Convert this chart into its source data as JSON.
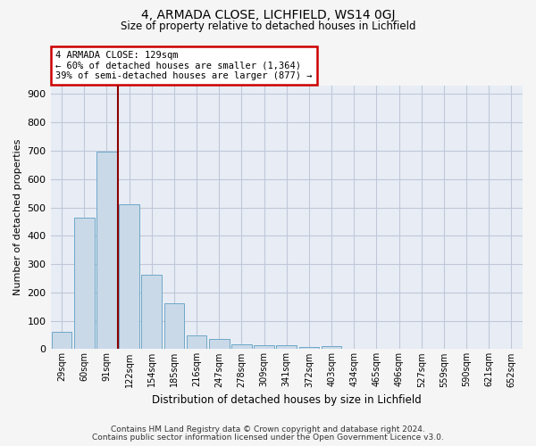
{
  "title1": "4, ARMADA CLOSE, LICHFIELD, WS14 0GJ",
  "title2": "Size of property relative to detached houses in Lichfield",
  "xlabel": "Distribution of detached houses by size in Lichfield",
  "ylabel": "Number of detached properties",
  "bar_labels": [
    "29sqm",
    "60sqm",
    "91sqm",
    "122sqm",
    "154sqm",
    "185sqm",
    "216sqm",
    "247sqm",
    "278sqm",
    "309sqm",
    "341sqm",
    "372sqm",
    "403sqm",
    "434sqm",
    "465sqm",
    "496sqm",
    "527sqm",
    "559sqm",
    "590sqm",
    "621sqm",
    "652sqm"
  ],
  "bar_heights": [
    60,
    465,
    697,
    510,
    263,
    163,
    48,
    35,
    18,
    14,
    13,
    6,
    10,
    0,
    0,
    0,
    0,
    0,
    0,
    0,
    0
  ],
  "bar_color": "#c9d9e8",
  "bar_edge_color": "#6fa8c8",
  "annotation_text": "4 ARMADA CLOSE: 129sqm\n← 60% of detached houses are smaller (1,364)\n39% of semi-detached houses are larger (877) →",
  "annotation_box_color": "#ffffff",
  "annotation_box_edge": "#cc0000",
  "vline_color": "#8b0000",
  "ylim": [
    0,
    930
  ],
  "yticks": [
    0,
    100,
    200,
    300,
    400,
    500,
    600,
    700,
    800,
    900
  ],
  "grid_color": "#c0c8d8",
  "bg_color": "#e8edf5",
  "fig_bg_color": "#f5f5f5",
  "footnote1": "Contains HM Land Registry data © Crown copyright and database right 2024.",
  "footnote2": "Contains public sector information licensed under the Open Government Licence v3.0."
}
